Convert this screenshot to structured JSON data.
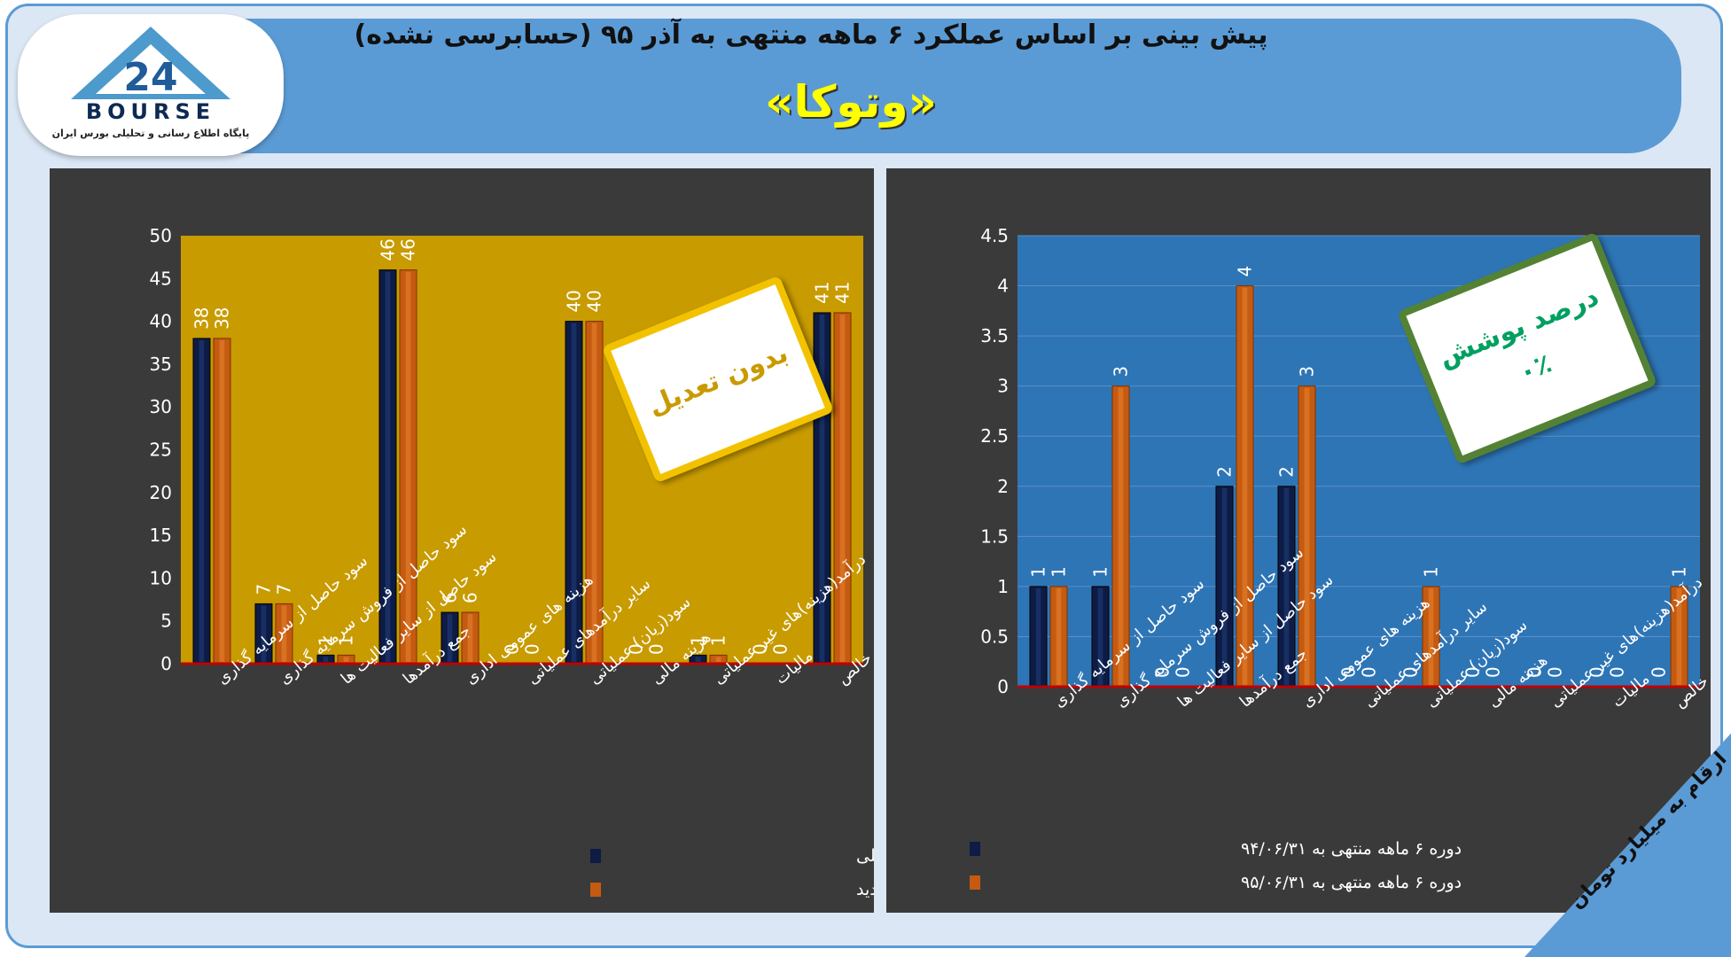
{
  "header": {
    "title_line1": "پیش بینی بر اساس عملکرد ۶ ماهه منتهی به آذر ۹۵ (حسابرسی نشده)",
    "title_line2": "«وتوکا»",
    "logo_brand": "BOURSE",
    "logo_number": "24",
    "logo_subtitle": "پایگاه اطلاع رسانی و تحلیلی بورس ایران"
  },
  "left_stamp": "بدون تعدیل",
  "right_stamp": {
    "line1": "درصد پوشش",
    "line2": "۰٪"
  },
  "unit_note": "ارقام به میلیارد تومان",
  "colors": {
    "page_bg": "#dbe7f5",
    "banner": "#5b9bd5",
    "chart_bg": "#3a3a3a",
    "left_plot": "#c89b00",
    "right_plot": "#2e75b6",
    "series_prev": "#0d1b45",
    "series_new": "#c55a11",
    "axis_line": "#c00000"
  },
  "chart_data": [
    {
      "type": "bar",
      "categories": [
        "سود حاصل از سرمایه گذاری",
        "سود حاصل از فروش سرمایه گذاری",
        "سود حاصل از سایر فعالیت ها",
        "جمع درآمدها",
        "هزینه های عمومی اداری",
        "سایر درآمدهای عملیاتی",
        "سود(زیان) عملیاتی",
        "هزینه مالی",
        "درآمد(هزینه)های غیر عملیاتی",
        "مالیات",
        "سود خالص"
      ],
      "series": [
        {
          "name": "پیش بینی بر اساس گزارش قبلی",
          "values": [
            38,
            7,
            1,
            46,
            6,
            0,
            40,
            0,
            1,
            0,
            41
          ],
          "labels": [
            "38",
            "7",
            "1",
            "46",
            "6",
            "0",
            "40",
            "0",
            "1",
            "0",
            "41"
          ]
        },
        {
          "name": "پیش بینی بر اساس گزارش جدید",
          "values": [
            38,
            7,
            1,
            46,
            6,
            0,
            40,
            0,
            1,
            0,
            41
          ],
          "labels": [
            "38",
            "7",
            "1",
            "46",
            "6",
            "0",
            "40",
            "0",
            "1",
            "0",
            "41"
          ]
        }
      ],
      "ylim": [
        0,
        50
      ],
      "yticks": [
        "0",
        "5",
        "10",
        "15",
        "20",
        "25",
        "30",
        "35",
        "40",
        "45",
        "50"
      ],
      "grid": false,
      "legend": "bottom-right"
    },
    {
      "type": "bar",
      "categories": [
        "سود حاصل از سرمایه گذاری",
        "سود حاصل از فروش سرمایه گذاری",
        "سود حاصل از سایر فعالیت ها",
        "جمع درآمدها",
        "هزینه های عمومی اداری",
        "سایر درآمدهای عملیاتی",
        "سود(زیان) عملیاتی",
        "هزینه مالی",
        "درآمد(هزینه)های غیر عملیاتی",
        "مالیات",
        "سود خالص"
      ],
      "series": [
        {
          "name": "دوره ۶ ماهه منتهی به ۹۴/۰۶/۳۱",
          "values": [
            1,
            1,
            0,
            2,
            2,
            0,
            0,
            0,
            0,
            0,
            0
          ],
          "labels": [
            "1",
            "1",
            "0",
            "2",
            "2",
            "0",
            "0",
            "0",
            "0",
            "0",
            "0"
          ]
        },
        {
          "name": "دوره ۶ ماهه منتهی به ۹۵/۰۶/۳۱",
          "values": [
            1,
            3,
            0,
            4,
            3,
            0,
            1,
            0,
            0,
            0,
            1
          ],
          "labels": [
            "1",
            "3",
            "0",
            "4",
            "3",
            "0",
            "1",
            "0",
            "0",
            "0",
            "1"
          ]
        }
      ],
      "ylim": [
        0,
        4.5
      ],
      "yticks": [
        "0",
        "0.5",
        "1",
        "1.5",
        "2",
        "2.5",
        "3",
        "3.5",
        "4",
        "4.5"
      ],
      "grid": true,
      "legend": "bottom-left"
    }
  ]
}
